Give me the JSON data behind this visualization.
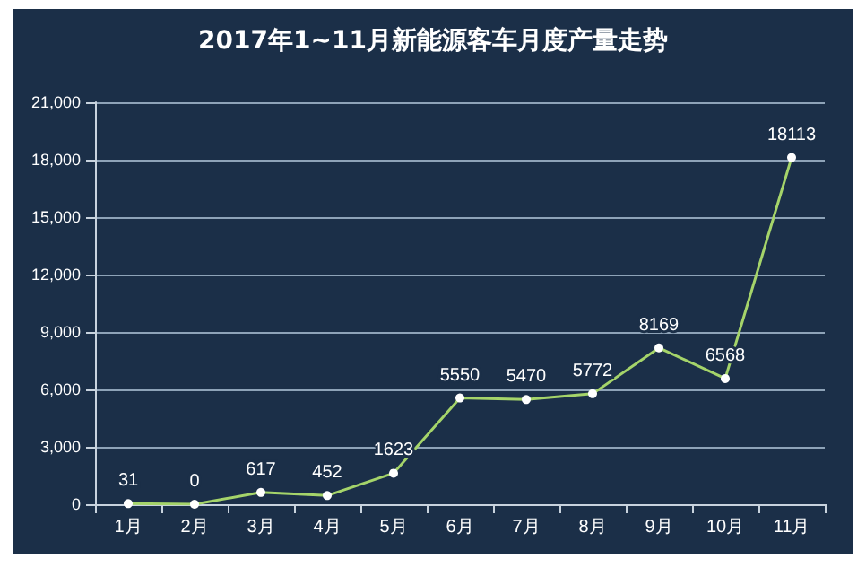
{
  "chart_data": {
    "type": "line",
    "title": "2017年1~11月新能源客车月度产量走势",
    "categories": [
      "1月",
      "2月",
      "3月",
      "4月",
      "5月",
      "6月",
      "7月",
      "8月",
      "9月",
      "10月",
      "11月"
    ],
    "series": [
      {
        "color": "#a5d46a",
        "values": [
          31,
          0,
          617,
          452,
          1623,
          5550,
          5470,
          5772,
          8169,
          6568,
          18113
        ]
      }
    ],
    "ylim": [
      0,
      21000
    ],
    "yticks": [
      {
        "value": 0,
        "label": "0"
      },
      {
        "value": 3000,
        "label": "3,000"
      },
      {
        "value": 6000,
        "label": "6,000"
      },
      {
        "value": 9000,
        "label": "9,000"
      },
      {
        "value": 12000,
        "label": "12,000"
      },
      {
        "value": 15000,
        "label": "15,000"
      },
      {
        "value": 18000,
        "label": "18,000"
      },
      {
        "value": 21000,
        "label": "21,000"
      }
    ],
    "grid": "y",
    "marker": "circle",
    "line_style": "solid",
    "data_labels": true
  }
}
